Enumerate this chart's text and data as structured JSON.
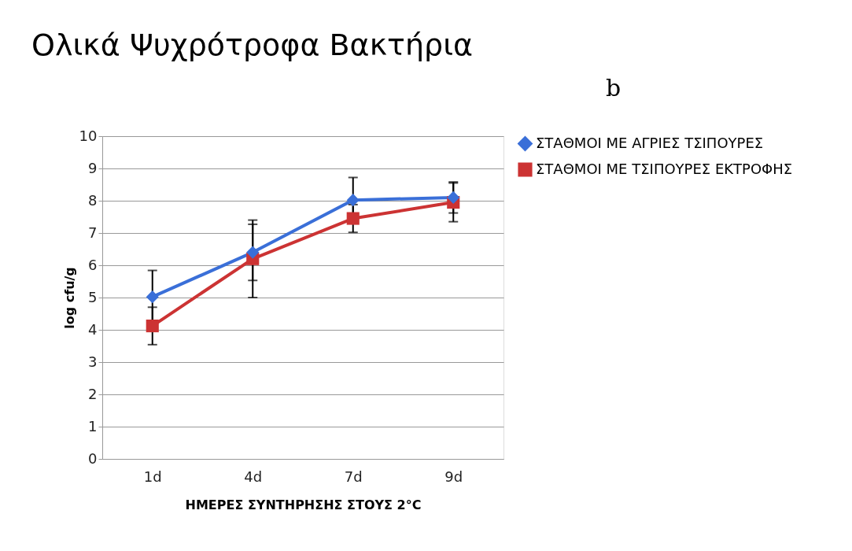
{
  "chart_data": {
    "type": "line",
    "title": "Ολικά Ψυχρότροφα Βακτήρια",
    "xlabel": "ΗΜΕΡΕΣ ΣΥΝΤΗΡΗΣΗΣ ΣΤΟΥΣ 2°C",
    "ylabel": "log cfu/g",
    "annotations": [
      "b"
    ],
    "categories": [
      "1d",
      "4d",
      "7d",
      "9d"
    ],
    "series": [
      {
        "name": "ΣΤΑΘΜΟΙ ΜΕ ΑΓΡΙΕΣ ΤΣΙΠΟΥΡΕΣ",
        "color": "#3a6fd8",
        "marker": "diamond",
        "values": [
          5.02,
          6.4,
          8.02,
          8.1
        ],
        "errors": [
          0.82,
          0.87,
          0.7,
          0.48
        ]
      },
      {
        "name": "ΣΤΑΘΜΟΙ ΜΕ ΤΣΙΠΟΥΡΕΣ ΕΚΤΡΟΦΗΣ",
        "color": "#cc3333",
        "marker": "square",
        "values": [
          4.12,
          6.2,
          7.45,
          7.95
        ],
        "errors": [
          0.58,
          1.2,
          0.43,
          0.6
        ]
      }
    ],
    "ylim": [
      0,
      10
    ],
    "yticks": [
      0,
      1,
      2,
      3,
      4,
      5,
      6,
      7,
      8,
      9,
      10
    ],
    "grid": "y",
    "legend": "right"
  }
}
